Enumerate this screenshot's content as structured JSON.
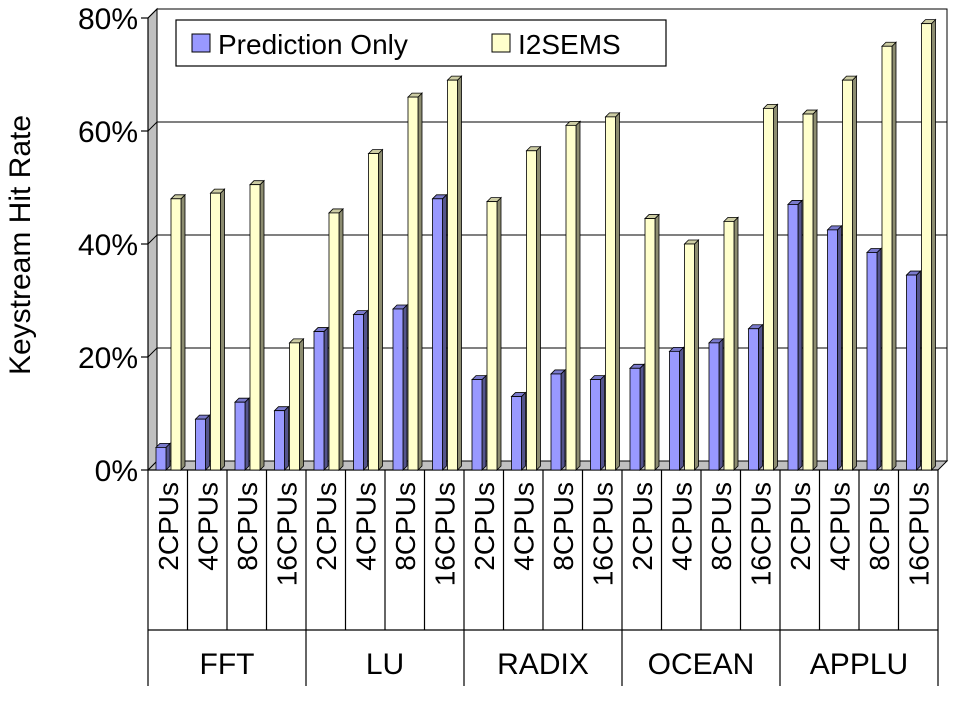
{
  "chart_data": {
    "type": "bar",
    "ylabel": "Keystream Hit Rate",
    "ylim": [
      0,
      80
    ],
    "ytick_step": 20,
    "ytick_suffix": "%",
    "grid": true,
    "legend_position": "top-left",
    "groups": [
      {
        "name": "FFT",
        "categories": [
          "2CPUs",
          "4CPUs",
          "8CPUs",
          "16CPUs"
        ]
      },
      {
        "name": "LU",
        "categories": [
          "2CPUs",
          "4CPUs",
          "8CPUs",
          "16CPUs"
        ]
      },
      {
        "name": "RADIX",
        "categories": [
          "2CPUs",
          "4CPUs",
          "8CPUs",
          "16CPUs"
        ]
      },
      {
        "name": "OCEAN",
        "categories": [
          "2CPUs",
          "4CPUs",
          "8CPUs",
          "16CPUs"
        ]
      },
      {
        "name": "APPLU",
        "categories": [
          "2CPUs",
          "4CPUs",
          "8CPUs",
          "16CPUs"
        ]
      }
    ],
    "series": [
      {
        "name": "Prediction Only",
        "color": "#9999ff",
        "values": [
          4,
          9,
          12,
          10.5,
          24.5,
          27.5,
          28.5,
          48,
          16,
          13,
          17,
          16,
          18,
          21,
          22.5,
          25,
          47,
          42.5,
          38.5,
          34.5
        ]
      },
      {
        "name": "I2SEMS",
        "color": "#ffffcc",
        "values": [
          48,
          49,
          50.5,
          22.5,
          45.5,
          56,
          66,
          69,
          47.5,
          56.5,
          61,
          62.5,
          44.5,
          40,
          44,
          64,
          63,
          69,
          75,
          79
        ]
      }
    ]
  }
}
